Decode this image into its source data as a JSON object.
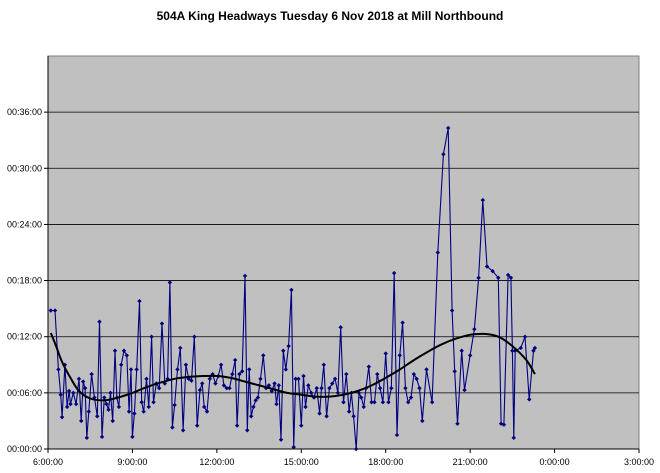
{
  "chart_data": {
    "type": "line",
    "title": "504A King Headways Tuesday 6 Nov 2018 at Mill Northbound",
    "xlabel": "",
    "ylabel": "",
    "x_unit": "hours since 00:00 on 6 Nov 2018",
    "y_unit": "minutes",
    "xlim": [
      6,
      27
    ],
    "ylim": [
      0,
      42
    ],
    "xticks": [
      {
        "value": 6,
        "label": "6:00:00"
      },
      {
        "value": 9,
        "label": "9:00:00"
      },
      {
        "value": 12,
        "label": "12:00:00"
      },
      {
        "value": 15,
        "label": "15:00:00"
      },
      {
        "value": 18,
        "label": "18:00:00"
      },
      {
        "value": 21,
        "label": "21:00:00"
      },
      {
        "value": 24,
        "label": "0:00:00"
      },
      {
        "value": 27,
        "label": "3:00:00"
      }
    ],
    "yticks": [
      {
        "value": 0,
        "label": "00:00:00"
      },
      {
        "value": 6,
        "label": "00:06:00"
      },
      {
        "value": 12,
        "label": "00:12:00"
      },
      {
        "value": 18,
        "label": "00:18:00"
      },
      {
        "value": 24,
        "label": "00:24:00"
      },
      {
        "value": 30,
        "label": "00:30:00"
      },
      {
        "value": 36,
        "label": "00:36:00"
      }
    ],
    "grid": true,
    "plot_background": "#c0c0c0",
    "series": [
      {
        "style": "line-with-diamond-markers",
        "color": "#000080",
        "points": [
          [
            6.1,
            14.8
          ],
          [
            6.25,
            14.8
          ],
          [
            6.37,
            8.5
          ],
          [
            6.45,
            5.8
          ],
          [
            6.5,
            3.4
          ],
          [
            6.6,
            9.0
          ],
          [
            6.68,
            4.5
          ],
          [
            6.75,
            6.2
          ],
          [
            6.8,
            4.8
          ],
          [
            6.9,
            6.0
          ],
          [
            7.0,
            4.8
          ],
          [
            7.1,
            7.5
          ],
          [
            7.18,
            3.0
          ],
          [
            7.25,
            7.2
          ],
          [
            7.32,
            6.5
          ],
          [
            7.38,
            1.2
          ],
          [
            7.45,
            4.0
          ],
          [
            7.55,
            8.0
          ],
          [
            7.65,
            5.5
          ],
          [
            7.75,
            3.5
          ],
          [
            7.83,
            13.6
          ],
          [
            7.92,
            1.3
          ],
          [
            8.0,
            5.5
          ],
          [
            8.08,
            4.8
          ],
          [
            8.15,
            4.2
          ],
          [
            8.22,
            6.0
          ],
          [
            8.3,
            3.0
          ],
          [
            8.38,
            10.5
          ],
          [
            8.45,
            5.5
          ],
          [
            8.52,
            4.5
          ],
          [
            8.6,
            9.0
          ],
          [
            8.7,
            10.5
          ],
          [
            8.8,
            10.0
          ],
          [
            8.88,
            4.0
          ],
          [
            8.95,
            8.5
          ],
          [
            9.0,
            1.3
          ],
          [
            9.07,
            3.8
          ],
          [
            9.15,
            8.5
          ],
          [
            9.25,
            15.8
          ],
          [
            9.33,
            5.0
          ],
          [
            9.4,
            4.0
          ],
          [
            9.5,
            7.5
          ],
          [
            9.58,
            4.5
          ],
          [
            9.68,
            12.0
          ],
          [
            9.75,
            5.0
          ],
          [
            9.85,
            7.0
          ],
          [
            9.95,
            6.5
          ],
          [
            10.05,
            13.4
          ],
          [
            10.15,
            7.0
          ],
          [
            10.25,
            7.5
          ],
          [
            10.33,
            17.8
          ],
          [
            10.42,
            2.3
          ],
          [
            10.5,
            4.7
          ],
          [
            10.6,
            8.5
          ],
          [
            10.7,
            10.8
          ],
          [
            10.8,
            2.0
          ],
          [
            10.9,
            9.0
          ],
          [
            11.0,
            7.5
          ],
          [
            11.1,
            7.3
          ],
          [
            11.2,
            12.0
          ],
          [
            11.3,
            2.5
          ],
          [
            11.4,
            6.3
          ],
          [
            11.48,
            7.0
          ],
          [
            11.55,
            4.5
          ],
          [
            11.65,
            4.0
          ],
          [
            11.75,
            7.5
          ],
          [
            11.85,
            8.0
          ],
          [
            11.95,
            7.0
          ],
          [
            12.05,
            7.8
          ],
          [
            12.15,
            9.0
          ],
          [
            12.25,
            6.8
          ],
          [
            12.35,
            6.5
          ],
          [
            12.45,
            6.5
          ],
          [
            12.55,
            8.0
          ],
          [
            12.65,
            9.5
          ],
          [
            12.72,
            2.5
          ],
          [
            12.8,
            8.0
          ],
          [
            12.9,
            8.3
          ],
          [
            13.0,
            18.5
          ],
          [
            13.08,
            2.0
          ],
          [
            13.15,
            8.5
          ],
          [
            13.22,
            3.5
          ],
          [
            13.3,
            4.5
          ],
          [
            13.38,
            5.2
          ],
          [
            13.46,
            5.5
          ],
          [
            13.55,
            7.5
          ],
          [
            13.65,
            10.0
          ],
          [
            13.75,
            6.5
          ],
          [
            13.85,
            6.8
          ],
          [
            13.95,
            6.2
          ],
          [
            14.05,
            7.0
          ],
          [
            14.12,
            4.8
          ],
          [
            14.2,
            6.8
          ],
          [
            14.28,
            1.0
          ],
          [
            14.36,
            10.5
          ],
          [
            14.45,
            8.5
          ],
          [
            14.55,
            11.0
          ],
          [
            14.65,
            17.0
          ],
          [
            14.73,
            0.2
          ],
          [
            14.8,
            7.5
          ],
          [
            14.9,
            7.5
          ],
          [
            15.0,
            2.5
          ],
          [
            15.08,
            7.8
          ],
          [
            15.15,
            4.5
          ],
          [
            15.25,
            6.8
          ],
          [
            15.35,
            6.0
          ],
          [
            15.45,
            5.5
          ],
          [
            15.55,
            6.5
          ],
          [
            15.65,
            3.8
          ],
          [
            15.72,
            6.5
          ],
          [
            15.8,
            9.0
          ],
          [
            15.9,
            3.5
          ],
          [
            16.0,
            6.5
          ],
          [
            16.1,
            7.0
          ],
          [
            16.2,
            7.5
          ],
          [
            16.3,
            6.0
          ],
          [
            16.4,
            13.0
          ],
          [
            16.5,
            5.0
          ],
          [
            16.6,
            8.0
          ],
          [
            16.7,
            4.0
          ],
          [
            16.78,
            6.0
          ],
          [
            16.86,
            3.5
          ],
          [
            16.95,
            0.0
          ],
          [
            17.05,
            6.0
          ],
          [
            17.13,
            5.5
          ],
          [
            17.22,
            4.5
          ],
          [
            17.3,
            6.5
          ],
          [
            17.4,
            8.8
          ],
          [
            17.5,
            5.0
          ],
          [
            17.6,
            5.0
          ],
          [
            17.7,
            8.0
          ],
          [
            17.8,
            6.5
          ],
          [
            17.9,
            5.0
          ],
          [
            18.0,
            10.2
          ],
          [
            18.1,
            5.0
          ],
          [
            18.2,
            6.5
          ],
          [
            18.3,
            18.8
          ],
          [
            18.4,
            1.5
          ],
          [
            18.5,
            10.0
          ],
          [
            18.6,
            13.5
          ],
          [
            18.7,
            6.5
          ],
          [
            18.8,
            5.0
          ],
          [
            18.9,
            5.5
          ],
          [
            19.0,
            8.0
          ],
          [
            19.1,
            7.5
          ],
          [
            19.2,
            6.5
          ],
          [
            19.3,
            3.0
          ],
          [
            19.45,
            8.5
          ],
          [
            19.65,
            5.0
          ],
          [
            19.85,
            21.0
          ],
          [
            20.05,
            31.5
          ],
          [
            20.22,
            34.3
          ],
          [
            20.36,
            14.8
          ],
          [
            20.45,
            8.3
          ],
          [
            20.55,
            2.7
          ],
          [
            20.7,
            10.5
          ],
          [
            20.8,
            6.3
          ],
          [
            21.0,
            10.0
          ],
          [
            21.15,
            12.8
          ],
          [
            21.3,
            18.3
          ],
          [
            21.45,
            26.6
          ],
          [
            21.6,
            19.5
          ],
          [
            21.8,
            19.0
          ],
          [
            22.0,
            18.3
          ],
          [
            22.1,
            2.7
          ],
          [
            22.2,
            2.6
          ],
          [
            22.35,
            18.6
          ],
          [
            22.45,
            18.3
          ],
          [
            22.5,
            10.5
          ],
          [
            22.55,
            1.2
          ],
          [
            22.6,
            10.5
          ],
          [
            22.8,
            10.8
          ],
          [
            22.95,
            12.0
          ],
          [
            23.1,
            5.3
          ],
          [
            23.25,
            10.5
          ],
          [
            23.3,
            10.8
          ]
        ]
      },
      {
        "style": "smooth-trend-line",
        "color": "#000000",
        "points": [
          [
            6.1,
            12.4
          ],
          [
            6.3,
            10.9
          ],
          [
            6.5,
            9.3
          ],
          [
            6.8,
            7.6
          ],
          [
            7.1,
            6.2
          ],
          [
            7.5,
            5.4
          ],
          [
            8.0,
            5.2
          ],
          [
            8.5,
            5.5
          ],
          [
            9.0,
            6.0
          ],
          [
            9.5,
            6.6
          ],
          [
            10.0,
            7.1
          ],
          [
            10.5,
            7.5
          ],
          [
            11.0,
            7.7
          ],
          [
            11.5,
            7.8
          ],
          [
            12.0,
            7.8
          ],
          [
            12.5,
            7.6
          ],
          [
            13.0,
            7.2
          ],
          [
            13.5,
            6.8
          ],
          [
            14.0,
            6.4
          ],
          [
            14.5,
            6.0
          ],
          [
            15.0,
            5.8
          ],
          [
            15.5,
            5.6
          ],
          [
            16.0,
            5.6
          ],
          [
            16.5,
            5.8
          ],
          [
            17.0,
            6.2
          ],
          [
            17.5,
            6.8
          ],
          [
            18.0,
            7.6
          ],
          [
            18.5,
            8.5
          ],
          [
            19.0,
            9.5
          ],
          [
            19.5,
            10.4
          ],
          [
            20.0,
            11.2
          ],
          [
            20.5,
            11.8
          ],
          [
            21.0,
            12.2
          ],
          [
            21.5,
            12.3
          ],
          [
            22.0,
            12.0
          ],
          [
            22.5,
            11.0
          ],
          [
            23.0,
            9.5
          ],
          [
            23.3,
            8.0
          ]
        ]
      }
    ]
  }
}
